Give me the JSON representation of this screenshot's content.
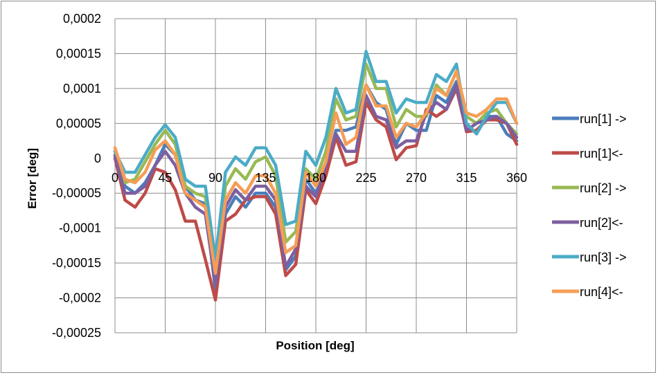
{
  "chart_data": {
    "type": "line",
    "title": "",
    "xlabel": "Position [deg]",
    "ylabel": "Error [deg]",
    "xlim": [
      0,
      360
    ],
    "ylim": [
      -0.00025,
      0.0002
    ],
    "xticks": [
      "0",
      "45",
      "90",
      "135",
      "180",
      "225",
      "270",
      "315",
      "360"
    ],
    "yticks": [
      "0,0002",
      "0,00015",
      "0,0001",
      "0,00005",
      "0",
      "-0,00005",
      "-0,0001",
      "-0,00015",
      "-0,0002",
      "-0,00025"
    ],
    "grid": true,
    "legend_position": "right",
    "x": [
      0,
      9,
      18,
      27,
      36,
      45,
      54,
      63,
      72,
      81,
      90,
      99,
      108,
      117,
      126,
      135,
      144,
      153,
      162,
      171,
      180,
      189,
      198,
      207,
      216,
      225,
      234,
      243,
      252,
      261,
      270,
      279,
      288,
      297,
      306,
      315,
      324,
      333,
      342,
      351,
      360
    ],
    "series": [
      {
        "name": "run[1] ->",
        "color": "#4a7ebb",
        "values": [
          5e-06,
          -4e-05,
          -5e-05,
          -3.5e-05,
          -1e-05,
          2e-05,
          5e-06,
          -4e-05,
          -6e-05,
          -6.5e-05,
          -0.00019,
          -8e-05,
          -5.5e-05,
          -7e-05,
          -5e-05,
          -5e-05,
          -7e-05,
          -0.00016,
          -0.00014,
          -3e-05,
          -5e-05,
          -2e-05,
          4e-05,
          4e-05,
          4.5e-05,
          0.000105,
          8e-05,
          7e-05,
          2e-05,
          5e-05,
          4e-05,
          4e-05,
          9e-05,
          8e-05,
          0.00011,
          5e-05,
          3.5e-05,
          6e-05,
          6e-05,
          3.5e-05,
          2.5e-05
        ]
      },
      {
        "name": "run[1]<-",
        "color": "#be4b48",
        "values": [
          0,
          -6e-05,
          -7e-05,
          -5e-05,
          -1.5e-05,
          -2e-05,
          -4.5e-05,
          -9e-05,
          -9e-05,
          -0.000145,
          -0.000203,
          -9e-05,
          -8e-05,
          -6e-05,
          -5.5e-05,
          -5.5e-05,
          -8e-05,
          -0.000168,
          -0.000152,
          -4.5e-05,
          -6.5e-05,
          -2.5e-05,
          3e-05,
          -1e-05,
          -5e-06,
          8e-05,
          5.5e-05,
          4.5e-05,
          -2e-06,
          1.5e-05,
          1.8e-05,
          7e-05,
          6e-05,
          7e-05,
          0.0001,
          3.8e-05,
          4e-05,
          5.5e-05,
          5.5e-05,
          5e-05,
          2e-05
        ]
      },
      {
        "name": "run[2] ->",
        "color": "#98b954",
        "values": [
          1e-05,
          -3.5e-05,
          -3e-05,
          -5e-06,
          2e-05,
          4e-05,
          2e-05,
          -4e-05,
          -5e-05,
          -5.5e-05,
          -0.00016,
          -4e-05,
          -1.5e-05,
          -3e-05,
          -5e-06,
          2e-06,
          -2.5e-05,
          -0.00012,
          -0.000105,
          -1.5e-05,
          -3e-05,
          1e-05,
          8.5e-05,
          5.5e-05,
          6e-05,
          0.000135,
          0.0001,
          0.0001,
          4.5e-05,
          7e-05,
          6e-05,
          6e-05,
          0.000105,
          9e-05,
          0.000125,
          6e-05,
          5e-05,
          6.5e-05,
          7e-05,
          5e-05,
          3.5e-05
        ]
      },
      {
        "name": "run[2]<-",
        "color": "#7d5fa0",
        "values": [
          3e-06,
          -5e-05,
          -5e-05,
          -4e-05,
          -1e-05,
          1e-05,
          -1e-05,
          -5e-05,
          -7e-05,
          -8e-05,
          -0.00018,
          -7e-05,
          -4.5e-05,
          -6e-05,
          -4e-05,
          -4e-05,
          -6e-05,
          -0.000155,
          -0.00013,
          -4e-05,
          -5.5e-05,
          -1e-05,
          3.5e-05,
          1e-05,
          1e-05,
          9e-05,
          6e-05,
          5.5e-05,
          1.5e-05,
          2.5e-05,
          2.5e-05,
          6.5e-05,
          8e-05,
          7e-05,
          0.000105,
          4e-05,
          5e-05,
          5.5e-05,
          6e-05,
          5e-05,
          3e-05
        ]
      },
      {
        "name": "run[3] ->",
        "color": "#4bacc6",
        "values": [
          1e-05,
          -2e-05,
          -2e-05,
          5e-06,
          3e-05,
          4.8e-05,
          3e-05,
          -3e-05,
          -4e-05,
          -4e-05,
          -0.000145,
          -2e-05,
          2e-06,
          -1e-05,
          1.5e-05,
          1.5e-05,
          -1e-05,
          -9.5e-05,
          -9e-05,
          1e-05,
          -1e-05,
          3e-05,
          0.0001,
          6.5e-05,
          7e-05,
          0.000153,
          0.00011,
          0.00011,
          6.5e-05,
          8.5e-05,
          8e-05,
          8e-05,
          0.00012,
          0.00011,
          0.000135,
          5e-05,
          3.5e-05,
          6e-05,
          8e-05,
          8e-05,
          5e-05
        ]
      },
      {
        "name": "run[4]<-",
        "color": "#f59d56",
        "values": [
          1.5e-05,
          -3e-05,
          -3.5e-05,
          -2e-05,
          1.2e-05,
          2.5e-05,
          5e-06,
          -5e-05,
          -6e-05,
          -7e-05,
          -0.000165,
          -6e-05,
          -3.5e-05,
          -5e-05,
          -2.5e-05,
          -2.5e-05,
          -5e-05,
          -0.000135,
          -0.000125,
          -2e-05,
          -4e-05,
          -5e-06,
          6.5e-05,
          2e-05,
          3e-05,
          0.000105,
          7.5e-05,
          7.5e-05,
          3e-05,
          5e-05,
          4.5e-05,
          6.5e-05,
          0.0001,
          9e-05,
          0.000125,
          6.5e-05,
          6e-05,
          7e-05,
          8.5e-05,
          8.5e-05,
          5e-05
        ]
      }
    ]
  }
}
